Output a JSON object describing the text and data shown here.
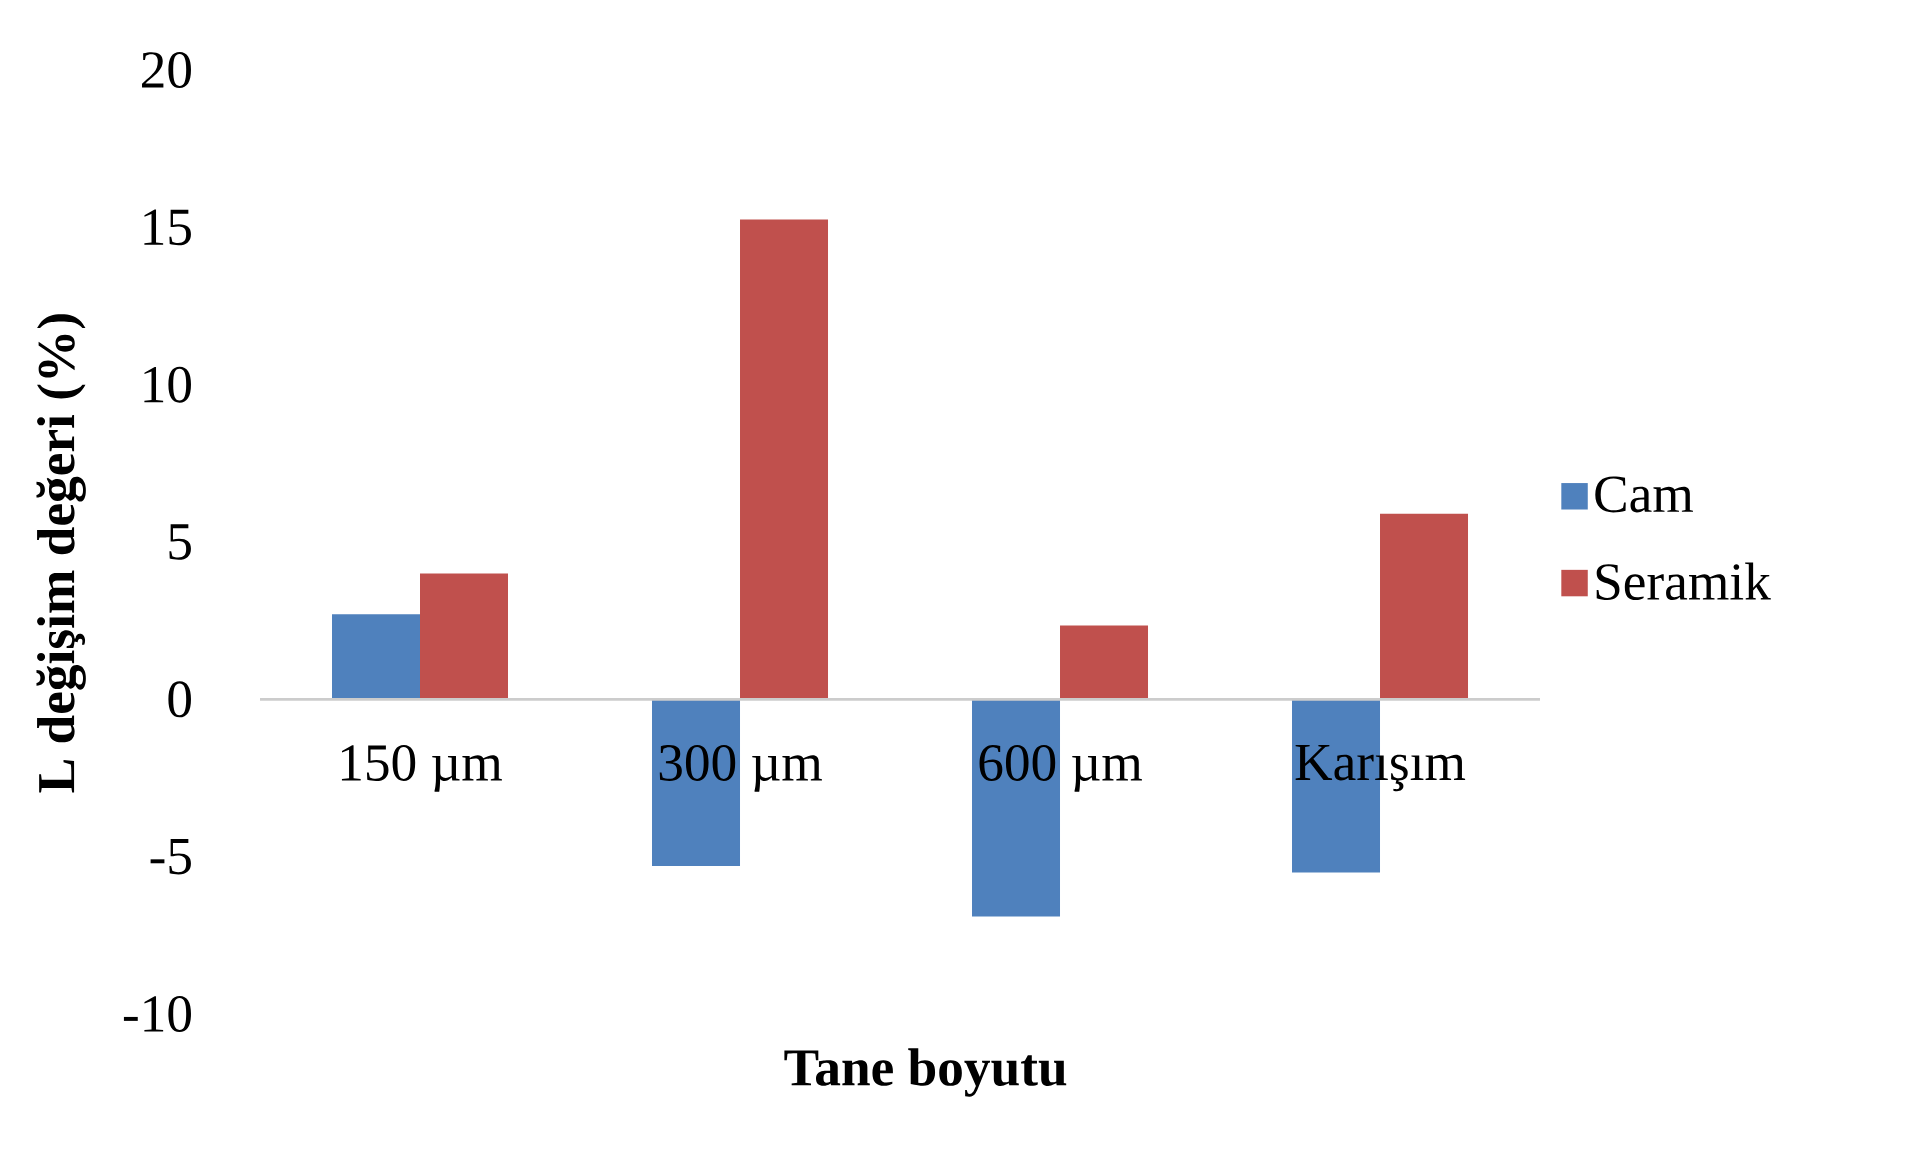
{
  "chart_data": {
    "type": "bar",
    "xlabel": "Tane boyutu",
    "ylabel": "L değişim değeri (%)",
    "categories": [
      "150 µm",
      "300 µm",
      "600 µm",
      "Karışım"
    ],
    "series": [
      {
        "name": "Cam",
        "color": "#4f81bd",
        "values": [
          2.7,
          -5.3,
          -6.9,
          -5.5
        ]
      },
      {
        "name": "Seramik",
        "color": "#c0504d",
        "values": [
          4.0,
          15.25,
          2.35,
          5.9
        ]
      }
    ],
    "ylim": [
      -10,
      20
    ],
    "yticks": [
      -10,
      -5,
      0,
      5,
      10,
      15,
      20
    ],
    "grid": false,
    "legend": "right"
  }
}
